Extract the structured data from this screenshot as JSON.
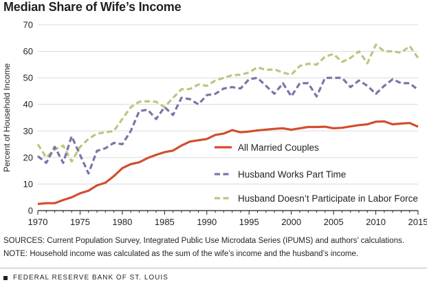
{
  "header": {
    "title": "Median Share of Wife’s Income"
  },
  "notes": {
    "sources": "SOURCES: Current Population Survey, Integrated Public Use Microdata Series (IPUMS) and authors’ calculations.",
    "note": "NOTE: Household income was calculated as the sum of the wife’s income and the husband’s income."
  },
  "footer": {
    "publisher": "FEDERAL RESERVE BANK OF ST. LOUIS"
  },
  "chart_data": {
    "type": "line",
    "title": "Median Share of Wife’s Income",
    "xlabel": "",
    "ylabel": "Percent of Household Income",
    "xlim": [
      1970,
      2015
    ],
    "ylim": [
      0,
      70
    ],
    "xticks": [
      1970,
      1975,
      1980,
      1985,
      1990,
      1995,
      2000,
      2005,
      2010,
      2015
    ],
    "yticks": [
      0,
      10,
      20,
      30,
      40,
      50,
      60,
      70
    ],
    "grid": "horizontal",
    "legend": "right",
    "series": [
      {
        "name": "All Married Couples",
        "color": "#d24e2d",
        "style": "solid",
        "x": [
          1970,
          1971,
          1972,
          1973,
          1974,
          1975,
          1976,
          1977,
          1978,
          1979,
          1980,
          1981,
          1982,
          1983,
          1984,
          1985,
          1986,
          1987,
          1988,
          1989,
          1990,
          1991,
          1992,
          1993,
          1994,
          1995,
          1996,
          1997,
          1998,
          1999,
          2000,
          2001,
          2002,
          2003,
          2004,
          2005,
          2006,
          2007,
          2008,
          2009,
          2010,
          2011,
          2012,
          2013,
          2014,
          2015
        ],
        "values": [
          2.5,
          2.8,
          2.8,
          4,
          5,
          6.5,
          7.5,
          9.5,
          10.5,
          13,
          16,
          17.5,
          18.2,
          19.8,
          21,
          22,
          22.6,
          24.5,
          26,
          26.5,
          27,
          28.5,
          29,
          30.3,
          29.5,
          29.8,
          30.2,
          30.5,
          30.8,
          31,
          30.5,
          31,
          31.5,
          31.5,
          31.6,
          31,
          31.2,
          31.7,
          32.2,
          32.5,
          33.5,
          33.6,
          32.5,
          32.8,
          33,
          31.6
        ]
      },
      {
        "name": "Husband Works Part Time",
        "color": "#7a75a6",
        "style": "dashed",
        "x": [
          1970,
          1971,
          1972,
          1973,
          1974,
          1975,
          1976,
          1977,
          1978,
          1979,
          1980,
          1981,
          1982,
          1983,
          1984,
          1985,
          1986,
          1987,
          1988,
          1989,
          1990,
          1991,
          1992,
          1993,
          1994,
          1995,
          1996,
          1997,
          1998,
          1999,
          2000,
          2001,
          2002,
          2003,
          2004,
          2005,
          2006,
          2007,
          2008,
          2009,
          2010,
          2011,
          2012,
          2013,
          2014,
          2015
        ],
        "values": [
          20.5,
          18,
          24,
          18,
          28,
          21,
          14,
          22.5,
          23.5,
          25.5,
          25,
          30,
          37.5,
          38,
          34.5,
          39,
          36,
          42.5,
          42,
          40,
          43.5,
          44,
          46,
          46.5,
          46,
          49.5,
          50,
          47,
          44,
          48,
          43,
          48,
          48,
          43,
          50,
          50,
          50,
          46.5,
          49,
          47,
          44,
          47,
          49.5,
          48,
          48,
          45.5
        ]
      },
      {
        "name": "Husband Doesn’t Participate in Labor Force",
        "color": "#bec57f",
        "style": "dashed",
        "x": [
          1970,
          1971,
          1972,
          1973,
          1974,
          1975,
          1976,
          1977,
          1978,
          1979,
          1980,
          1981,
          1982,
          1983,
          1984,
          1985,
          1986,
          1987,
          1988,
          1989,
          1990,
          1991,
          1992,
          1993,
          1994,
          1995,
          1996,
          1997,
          1998,
          1999,
          2000,
          2001,
          2002,
          2003,
          2004,
          2005,
          2006,
          2007,
          2008,
          2009,
          2010,
          2011,
          2012,
          2013,
          2014,
          2015
        ],
        "values": [
          25,
          20,
          23,
          24.5,
          18.5,
          24,
          27,
          29,
          29.5,
          30,
          34.5,
          39,
          41,
          41.2,
          41,
          39,
          42.5,
          45.7,
          45.8,
          47.5,
          47,
          49,
          50,
          51,
          51.2,
          52,
          54,
          53,
          53.2,
          52,
          51.2,
          54.5,
          55.3,
          55,
          58,
          59,
          56,
          57.5,
          60,
          55.5,
          62.5,
          60,
          60,
          59.5,
          62,
          57.5
        ]
      }
    ]
  }
}
